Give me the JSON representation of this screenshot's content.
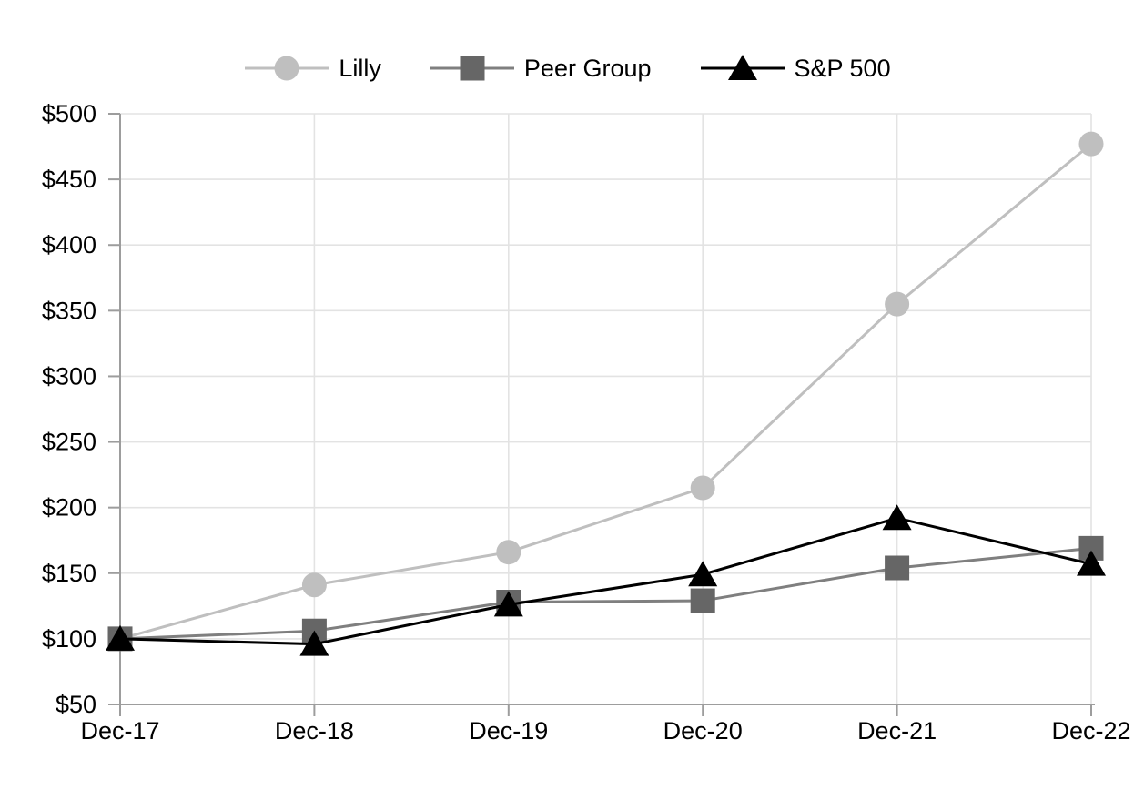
{
  "chart_data": {
    "type": "line",
    "title": "",
    "xlabel": "",
    "ylabel": "",
    "categories": [
      "Dec-17",
      "Dec-18",
      "Dec-19",
      "Dec-20",
      "Dec-21",
      "Dec-22"
    ],
    "series": [
      {
        "name": "Lilly",
        "marker": "circle",
        "line_color": "#bfbfbf",
        "marker_color": "#bfbfbf",
        "values": [
          100,
          141,
          166,
          215,
          355,
          477
        ]
      },
      {
        "name": "Peer Group",
        "marker": "square",
        "line_color": "#7f7f7f",
        "marker_color": "#666666",
        "values": [
          100,
          106,
          128,
          129,
          154,
          169
        ]
      },
      {
        "name": "S&P 500",
        "marker": "triangle",
        "line_color": "#000000",
        "marker_color": "#000000",
        "values": [
          100,
          96,
          126,
          149,
          192,
          157
        ]
      }
    ],
    "ylim": [
      50,
      500
    ],
    "y_tick_step": 50,
    "y_tick_prefix": "$",
    "y_tick_labels": [
      "$50",
      "$100",
      "$150",
      "$200",
      "$250",
      "$300",
      "$350",
      "$400",
      "$450",
      "$500"
    ],
    "grid": true,
    "legend_position": "top",
    "colors": {
      "background": "#ffffff",
      "gridline": "#e3e3e3",
      "axis": "#9d9d9d",
      "tick": "#9d9d9d",
      "text": "#000000"
    }
  }
}
